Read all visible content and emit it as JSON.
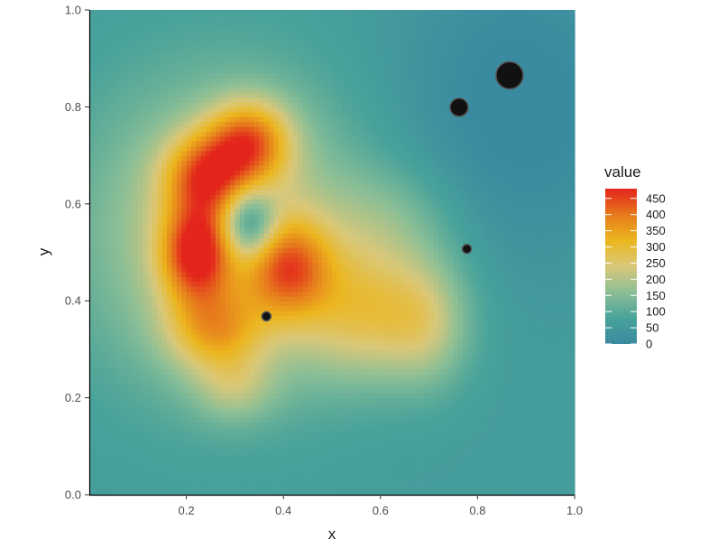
{
  "chart_data": {
    "type": "heatmap",
    "title": "",
    "xlabel": "x",
    "ylabel": "y",
    "xlim": [
      0,
      1
    ],
    "ylim": [
      0,
      1
    ],
    "x_ticks": [
      0.2,
      0.4,
      0.6,
      0.8,
      1.0
    ],
    "x_tick_labels": [
      "0.2",
      "0.4",
      "0.6",
      "0.8",
      "1.0"
    ],
    "y_ticks": [
      0.0,
      0.2,
      0.4,
      0.6,
      0.8,
      1.0
    ],
    "y_tick_labels": [
      "0.0",
      "0.2",
      "0.4",
      "0.6",
      "0.8",
      "1.0"
    ],
    "grid": false,
    "legend": {
      "title": "value",
      "placement": "right",
      "min": 0,
      "max": 480,
      "breaks": [
        0,
        50,
        100,
        150,
        200,
        250,
        300,
        350,
        400,
        450
      ],
      "labels": [
        "0",
        "50",
        "100",
        "150",
        "200",
        "250",
        "300",
        "350",
        "400",
        "450"
      ],
      "colors": [
        "#3a8aa0",
        "#49a39a",
        "#8cbf96",
        "#d9c87a",
        "#ecb61e",
        "#e67a1c",
        "#e3251c"
      ]
    },
    "grid_resolution": 100,
    "background_value": 60,
    "surface_components": [
      {
        "x": 0.22,
        "y": 0.5,
        "sx": 0.05,
        "sy": 0.07,
        "value": 300
      },
      {
        "x": 0.24,
        "y": 0.66,
        "sx": 0.06,
        "sy": 0.06,
        "value": 240
      },
      {
        "x": 0.33,
        "y": 0.73,
        "sx": 0.06,
        "sy": 0.06,
        "value": 260
      },
      {
        "x": 0.41,
        "y": 0.47,
        "sx": 0.06,
        "sy": 0.07,
        "value": 230
      },
      {
        "x": 0.26,
        "y": 0.34,
        "sx": 0.07,
        "sy": 0.06,
        "value": 180
      },
      {
        "x": 0.28,
        "y": 0.54,
        "sx": 0.2,
        "sy": 0.22,
        "value": 180
      },
      {
        "x": 0.58,
        "y": 0.38,
        "sx": 0.11,
        "sy": 0.1,
        "value": 180
      },
      {
        "x": 0.7,
        "y": 0.35,
        "sx": 0.06,
        "sy": 0.09,
        "value": 90
      },
      {
        "x": 0.62,
        "y": 0.57,
        "sx": 0.1,
        "sy": 0.08,
        "value": 60
      },
      {
        "x": 0.3,
        "y": 0.22,
        "sx": 0.06,
        "sy": 0.05,
        "value": 90
      },
      {
        "x": 0.33,
        "y": 0.56,
        "sx": 0.04,
        "sy": 0.05,
        "value": -210
      },
      {
        "x": 0.88,
        "y": 0.8,
        "sx": 0.18,
        "sy": 0.22,
        "value": -70
      }
    ],
    "points": [
      {
        "x": 0.365,
        "y": 0.368,
        "size": "small"
      },
      {
        "x": 0.778,
        "y": 0.507,
        "size": "small"
      },
      {
        "x": 0.762,
        "y": 0.799,
        "size": "medium"
      },
      {
        "x": 0.866,
        "y": 0.865,
        "size": "large"
      }
    ]
  }
}
